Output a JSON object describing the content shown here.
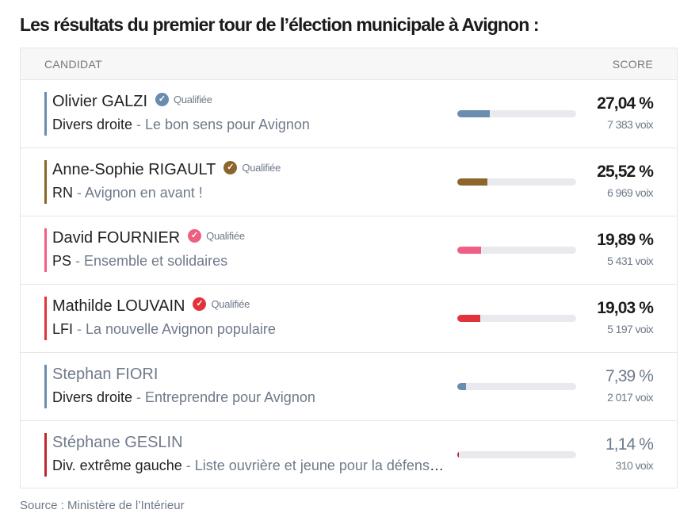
{
  "title": "Les résultats du premier tour de l’élection municipale à Avignon :",
  "table": {
    "header": {
      "candidate": "CANDIDAT",
      "score": "SCORE"
    },
    "qualified_label": "Qualifiée",
    "rows": [
      {
        "name": "Olivier GALZI",
        "qualified": true,
        "party": "Divers droite",
        "list": "Le bon sens pour Avignon",
        "score": "27,04 %",
        "score_value": 27.04,
        "votes": "7 383 voix",
        "color": "#6a8cae",
        "faded": false
      },
      {
        "name": "Anne-Sophie RIGAULT",
        "qualified": true,
        "party": "RN",
        "list": "Avignon en avant !",
        "score": "25,52 %",
        "score_value": 25.52,
        "votes": "6 969 voix",
        "color": "#8b6529",
        "faded": false
      },
      {
        "name": "David FOURNIER",
        "qualified": true,
        "party": "PS",
        "list": "Ensemble et solidaires",
        "score": "19,89 %",
        "score_value": 19.89,
        "votes": "5 431 voix",
        "color": "#ef5f83",
        "faded": false
      },
      {
        "name": "Mathilde LOUVAIN",
        "qualified": true,
        "party": "LFI",
        "list": "La nouvelle Avignon populaire",
        "score": "19,03 %",
        "score_value": 19.03,
        "votes": "5 197 voix",
        "color": "#e2333a",
        "faded": false
      },
      {
        "name": "Stephan FIORI",
        "qualified": false,
        "party": "Divers droite",
        "list": "Entreprendre pour Avignon",
        "score": "7,39 %",
        "score_value": 7.39,
        "votes": "2 017 voix",
        "color": "#6a8cae",
        "faded": true
      },
      {
        "name": "Stéphane GESLIN",
        "qualified": false,
        "party": "Div. extrême gauche",
        "list": "Liste ouvrière et jeune pour la défense des services publics",
        "score": "1,14 %",
        "score_value": 1.14,
        "votes": "310 voix",
        "color": "#c0272d",
        "faded": true
      }
    ]
  },
  "source": "Source : Ministère de l’Intérieur"
}
